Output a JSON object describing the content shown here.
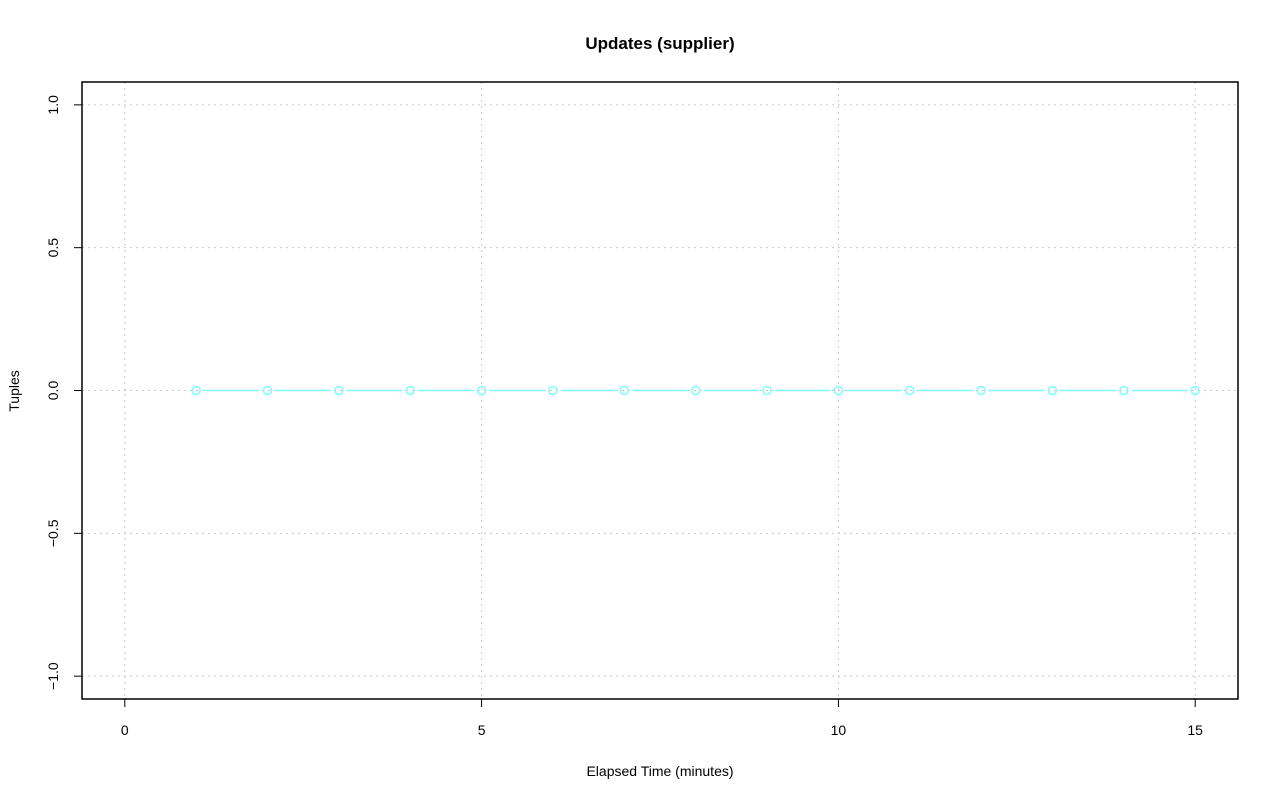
{
  "chart_data": {
    "type": "line",
    "title": "Updates (supplier)",
    "xlabel": "Elapsed Time (minutes)",
    "ylabel": "Tuples",
    "xlim": [
      -0.6,
      15.6
    ],
    "ylim": [
      -1.08,
      1.08
    ],
    "xticks": [
      0,
      5,
      10,
      15
    ],
    "xtick_labels": [
      "0",
      "5",
      "10",
      "15"
    ],
    "yticks": [
      -1.0,
      -0.5,
      0.0,
      0.5,
      1.0
    ],
    "ytick_labels": [
      "−1.0",
      "−0.5",
      "0.0",
      "0.5",
      "1.0"
    ],
    "grid": true,
    "series": [
      {
        "color": "#7fffff",
        "marker": "open-circle",
        "x": [
          1,
          2,
          3,
          4,
          5,
          6,
          7,
          8,
          9,
          10,
          11,
          12,
          13,
          14,
          15
        ],
        "y": [
          0,
          0,
          0,
          0,
          0,
          0,
          0,
          0,
          0,
          0,
          0,
          0,
          0,
          0,
          0
        ]
      }
    ]
  }
}
